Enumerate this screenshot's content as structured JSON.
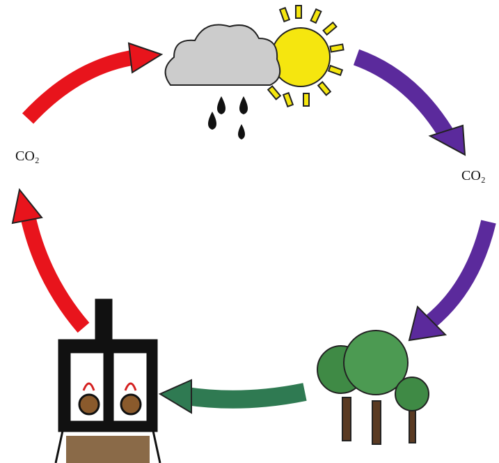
{
  "labels": [
    "CO₂",
    "CO₂"
  ]
}
